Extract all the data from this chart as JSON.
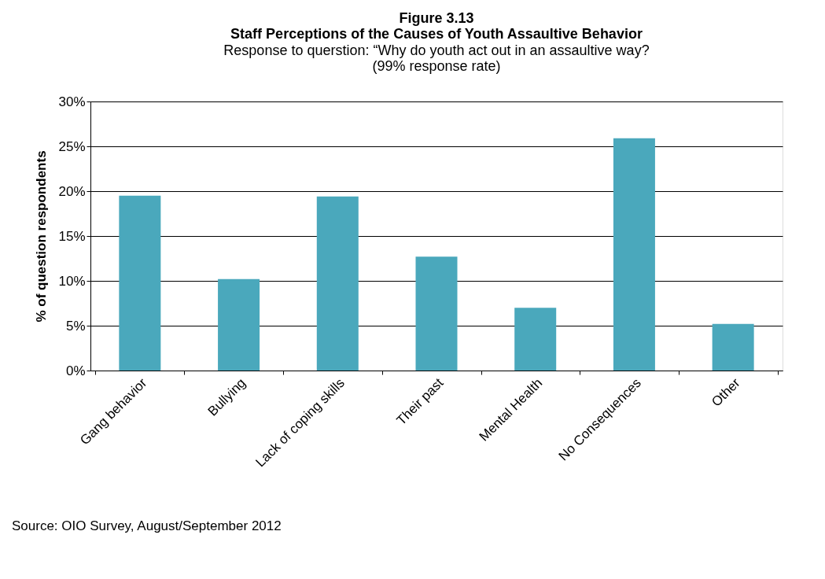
{
  "chart_data": {
    "type": "bar",
    "title": "Figure 3.13\nStaff Perceptions of the Causes of Youth Assaultive Behavior",
    "subtitle": "Response to querstion: “Why do youth act out in an assaultive way?\n(99% response rate)",
    "ylabel": "% of question respondents",
    "categories": [
      "Gang behavior",
      "Bullying",
      "Lack of coping skills",
      "Their past",
      "Mental Health",
      "No Consequences",
      "Other"
    ],
    "values": [
      19.5,
      10.2,
      19.4,
      12.7,
      7.0,
      25.9,
      5.2
    ],
    "color": "#4aa8bc",
    "ylim": [
      0,
      30
    ],
    "yticks": [
      {
        "value": 0,
        "label": "0%"
      },
      {
        "value": 5,
        "label": "5%"
      },
      {
        "value": 10,
        "label": "10%"
      },
      {
        "value": 15,
        "label": "15%"
      },
      {
        "value": 20,
        "label": "20%"
      },
      {
        "value": 25,
        "label": "25%"
      },
      {
        "value": 30,
        "label": "30%"
      }
    ],
    "grid": "y",
    "annotations": [
      "Source: OIO Survey, August/September 2012"
    ]
  }
}
